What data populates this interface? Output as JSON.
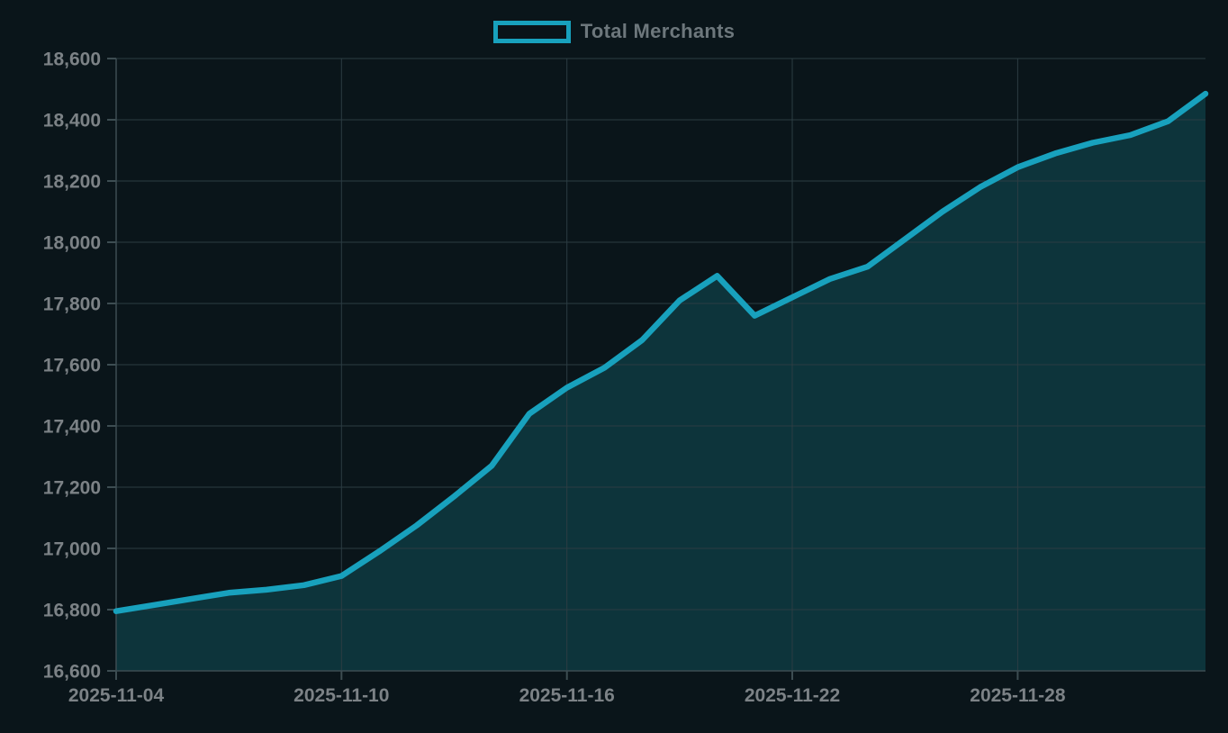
{
  "colors": {
    "background": "#0a151a",
    "line": "#18a1bd",
    "area_fill": "#0d343b",
    "gridline": "#2c3d43",
    "axis": "#3d4d52",
    "tick_label": "#7c8286",
    "legend_text": "#6d777c",
    "legend_swatch_fill": "#0a1318"
  },
  "chart_data": {
    "type": "area",
    "title": "",
    "legend_position": "top-center",
    "grid": true,
    "legend": [
      {
        "label": "Total Merchants",
        "color": "#18a1bd"
      }
    ],
    "x": [
      "2025-11-04",
      "2025-11-05",
      "2025-11-06",
      "2025-11-07",
      "2025-11-08",
      "2025-11-09",
      "2025-11-10",
      "2025-11-11",
      "2025-11-12",
      "2025-11-13",
      "2025-11-14",
      "2025-11-15",
      "2025-11-16",
      "2025-11-17",
      "2025-11-18",
      "2025-11-19",
      "2025-11-20",
      "2025-11-21",
      "2025-11-22",
      "2025-11-23",
      "2025-11-24",
      "2025-11-25",
      "2025-11-26",
      "2025-11-27",
      "2025-11-28",
      "2025-11-29",
      "2025-11-30",
      "2025-12-01",
      "2025-12-02",
      "2025-12-03"
    ],
    "series": [
      {
        "name": "Total Merchants",
        "values": [
          16795,
          16815,
          16835,
          16855,
          16865,
          16880,
          16910,
          16990,
          17075,
          17170,
          17270,
          17440,
          17525,
          17590,
          17680,
          17810,
          17890,
          17760,
          17820,
          17880,
          17920,
          18010,
          18100,
          18180,
          18245,
          18290,
          18325,
          18350,
          18395,
          18485
        ]
      }
    ],
    "ylim": [
      16600,
      18600
    ],
    "y_ticks": [
      {
        "value": 16600,
        "label": "16,600"
      },
      {
        "value": 16800,
        "label": "16,800"
      },
      {
        "value": 17000,
        "label": "17,000"
      },
      {
        "value": 17200,
        "label": "17,200"
      },
      {
        "value": 17400,
        "label": "17,400"
      },
      {
        "value": 17600,
        "label": "17,600"
      },
      {
        "value": 17800,
        "label": "17,800"
      },
      {
        "value": 18000,
        "label": "18,000"
      },
      {
        "value": 18200,
        "label": "18,200"
      },
      {
        "value": 18400,
        "label": "18,400"
      },
      {
        "value": 18600,
        "label": "18,600"
      }
    ],
    "x_ticks": [
      {
        "index": 0,
        "label": "2025-11-04"
      },
      {
        "index": 6,
        "label": "2025-11-10"
      },
      {
        "index": 12,
        "label": "2025-11-16"
      },
      {
        "index": 18,
        "label": "2025-11-22"
      },
      {
        "index": 24,
        "label": "2025-11-28"
      }
    ],
    "xlabel": "",
    "ylabel": ""
  }
}
